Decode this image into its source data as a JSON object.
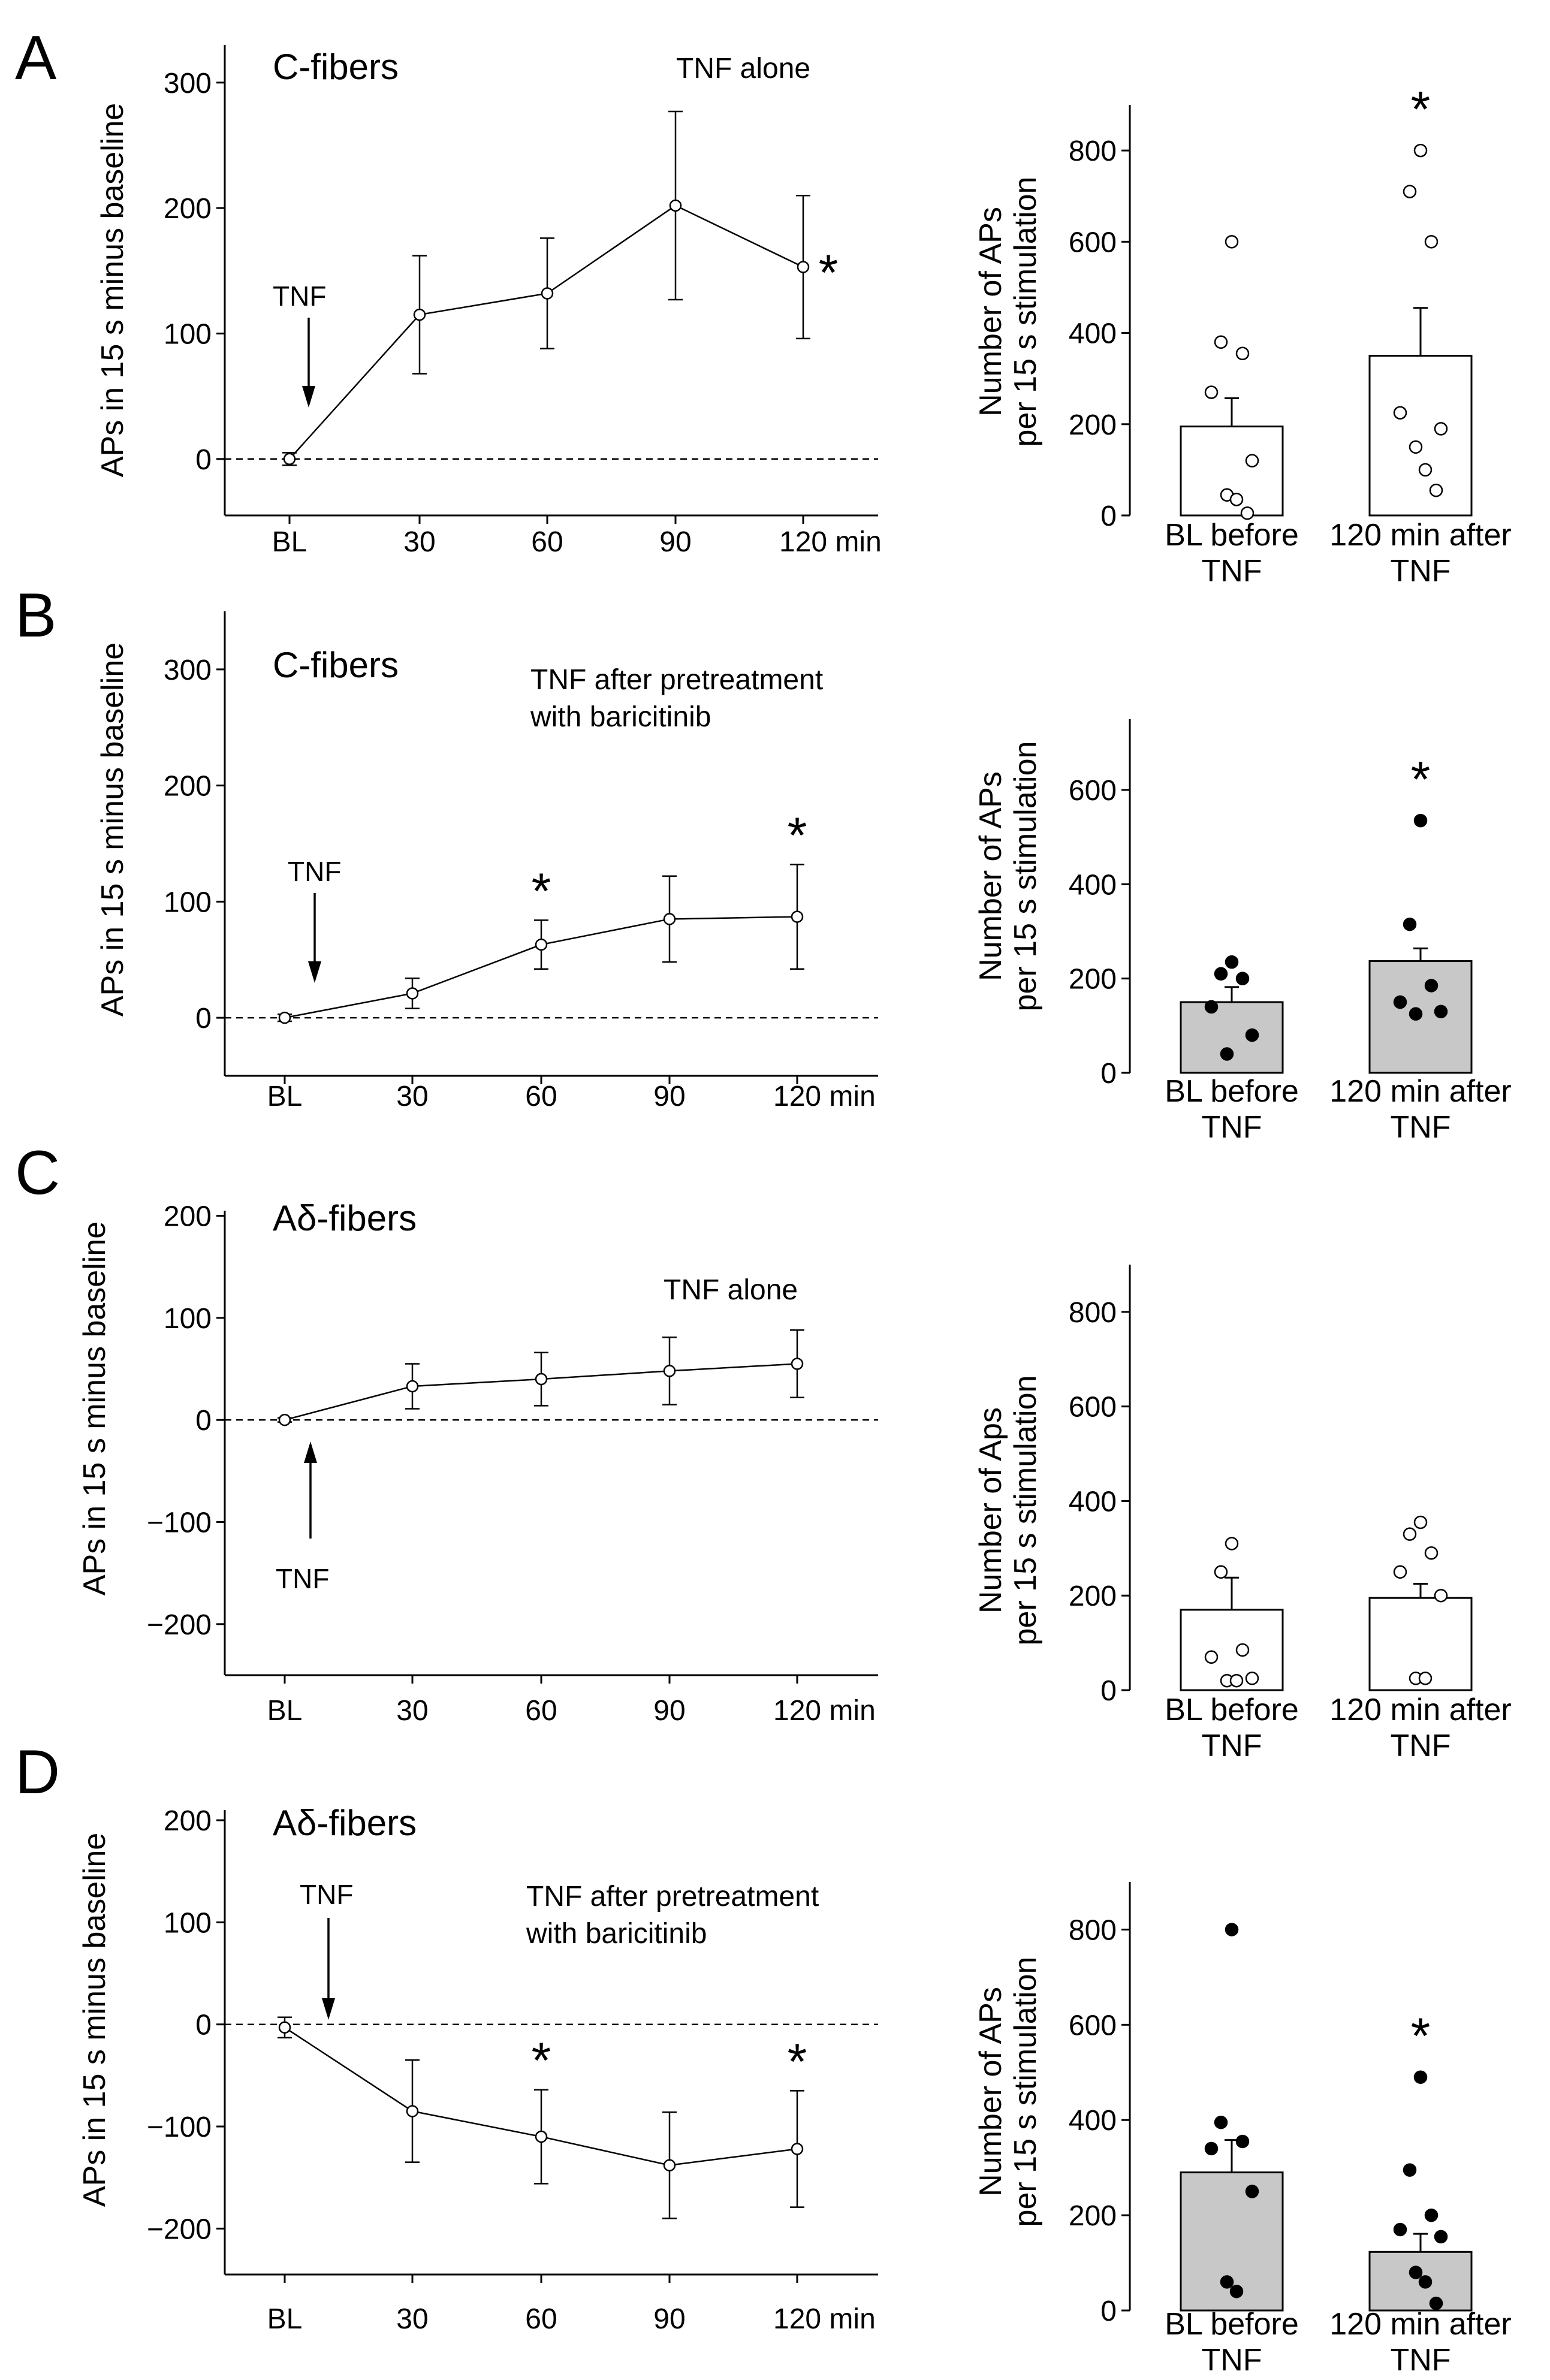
{
  "figure": {
    "panels": [
      {
        "id": "A",
        "label": "A"
      },
      {
        "id": "B",
        "label": "B"
      },
      {
        "id": "C",
        "label": "C"
      },
      {
        "id": "D",
        "label": "D"
      }
    ]
  },
  "chart_data": [
    {
      "panel": "A",
      "type": "line",
      "title": "C-fibers",
      "condition": [
        "TNF alone"
      ],
      "ylabel": "APs in 15 s minus baseline",
      "categories": [
        "BL",
        "30",
        "60",
        "90",
        "120 min"
      ],
      "series": [
        {
          "name": "C-fibers TNF alone",
          "values": [
            0,
            115,
            132,
            202,
            153
          ],
          "errors": [
            5,
            47,
            44,
            75,
            57
          ]
        }
      ],
      "ylim": [
        -45,
        330
      ],
      "yticks": [
        0,
        100,
        200,
        300
      ],
      "significant": [
        4
      ],
      "annotation": {
        "text": "TNF",
        "at": 0.15,
        "direction": "down"
      },
      "baseline_dashed": true
    },
    {
      "panel": "A",
      "type": "bar",
      "ylabel": [
        "Number of APs",
        "per 15 s stimulation"
      ],
      "categories": [
        [
          "BL before",
          "TNF"
        ],
        [
          "120 min after",
          "TNF"
        ]
      ],
      "values": [
        195,
        350
      ],
      "errors": [
        62,
        105
      ],
      "points": [
        [
          600,
          380,
          355,
          270,
          120,
          45,
          35,
          5
        ],
        [
          800,
          710,
          600,
          225,
          190,
          150,
          100,
          55
        ]
      ],
      "fill": "#ffffff",
      "dot_fill": "#ffffff",
      "ylim": [
        0,
        900
      ],
      "yticks": [
        0,
        200,
        400,
        600,
        800
      ],
      "significant": [
        1
      ]
    },
    {
      "panel": "B",
      "type": "line",
      "title": "C-fibers",
      "condition": [
        "TNF after pretreatment",
        "with baricitinib"
      ],
      "ylabel": "APs in 15 s minus baseline",
      "categories": [
        "BL",
        "30",
        "60",
        "90",
        "120 min"
      ],
      "series": [
        {
          "name": "C-fibers TNF after baricitinib",
          "values": [
            0,
            21,
            63,
            85,
            87
          ],
          "errors": [
            3,
            13,
            21,
            37,
            45
          ]
        }
      ],
      "ylim": [
        -50,
        350
      ],
      "yticks": [
        0,
        100,
        200,
        300
      ],
      "significant": [
        2,
        4
      ],
      "annotation": {
        "text": "TNF",
        "at": 0.2,
        "direction": "down"
      },
      "baseline_dashed": true
    },
    {
      "panel": "B",
      "type": "bar",
      "ylabel": [
        "Number of APs",
        "per 15 s stimulation"
      ],
      "categories": [
        [
          "BL before",
          "TNF"
        ],
        [
          "120 min after",
          "TNF"
        ]
      ],
      "values": [
        150,
        237
      ],
      "errors": [
        32,
        27
      ],
      "points": [
        [
          235,
          210,
          200,
          140,
          80,
          40
        ],
        [
          535,
          315,
          185,
          150,
          130,
          125
        ]
      ],
      "fill": "#c8c8c8",
      "dot_fill": "#000000",
      "ylim": [
        0,
        750
      ],
      "yticks": [
        0,
        200,
        400,
        600
      ],
      "significant": [
        1
      ]
    },
    {
      "panel": "C",
      "type": "line",
      "title": "Aδ-fibers",
      "condition": [
        "TNF alone"
      ],
      "ylabel": "APs in 15 s minus baseline",
      "categories": [
        "BL",
        "30",
        "60",
        "90",
        "120 min"
      ],
      "series": [
        {
          "name": "Aδ-fibers TNF alone",
          "values": [
            0,
            33,
            40,
            48,
            55
          ],
          "errors": [
            2,
            22,
            26,
            33,
            33
          ]
        }
      ],
      "ylim": [
        -250,
        205
      ],
      "yticks": [
        -200,
        -100,
        0,
        100,
        200
      ],
      "annotation": {
        "text": "TNF",
        "at": 0.2,
        "direction": "up"
      },
      "baseline_dashed": true
    },
    {
      "panel": "C",
      "type": "bar",
      "ylabel": [
        "Number of Aps",
        "per 15 s stimulation"
      ],
      "categories": [
        [
          "BL before",
          "TNF"
        ],
        [
          "120 min after",
          "TNF"
        ]
      ],
      "values": [
        170,
        195
      ],
      "errors": [
        68,
        30
      ],
      "points": [
        [
          310,
          250,
          85,
          70,
          25,
          20,
          20
        ],
        [
          355,
          330,
          290,
          250,
          200,
          25,
          25
        ]
      ],
      "fill": "#ffffff",
      "dot_fill": "#ffffff",
      "ylim": [
        0,
        900
      ],
      "yticks": [
        0,
        200,
        400,
        600,
        800
      ]
    },
    {
      "panel": "D",
      "type": "line",
      "title": "Aδ-fibers",
      "condition": [
        "TNF after pretreatment",
        "with baricitinib"
      ],
      "ylabel": "APs in 15 s minus baseline",
      "categories": [
        "BL",
        "30",
        "60",
        "90",
        "120 min"
      ],
      "series": [
        {
          "name": "Aδ-fibers TNF after baricitinib",
          "values": [
            -3,
            -85,
            -110,
            -138,
            -122
          ],
          "errors": [
            10,
            50,
            46,
            52,
            57
          ]
        }
      ],
      "ylim": [
        -245,
        210
      ],
      "yticks": [
        -200,
        -100,
        0,
        100,
        200
      ],
      "significant": [
        2,
        4
      ],
      "annotation": {
        "text": "TNF",
        "at": 0.3,
        "direction": "down"
      },
      "baseline_dashed": true
    },
    {
      "panel": "D",
      "type": "bar",
      "ylabel": [
        "Number of APs",
        "per 15 s stimulation"
      ],
      "categories": [
        [
          "BL before",
          "TNF"
        ],
        [
          "120 min after",
          "TNF"
        ]
      ],
      "values": [
        290,
        123
      ],
      "errors": [
        68,
        38
      ],
      "points": [
        [
          800,
          395,
          355,
          340,
          250,
          60,
          40
        ],
        [
          490,
          295,
          200,
          170,
          155,
          80,
          60,
          15
        ]
      ],
      "fill": "#c8c8c8",
      "dot_fill": "#000000",
      "ylim": [
        0,
        900
      ],
      "yticks": [
        0,
        200,
        400,
        600,
        800
      ],
      "significant": [
        1
      ]
    }
  ]
}
